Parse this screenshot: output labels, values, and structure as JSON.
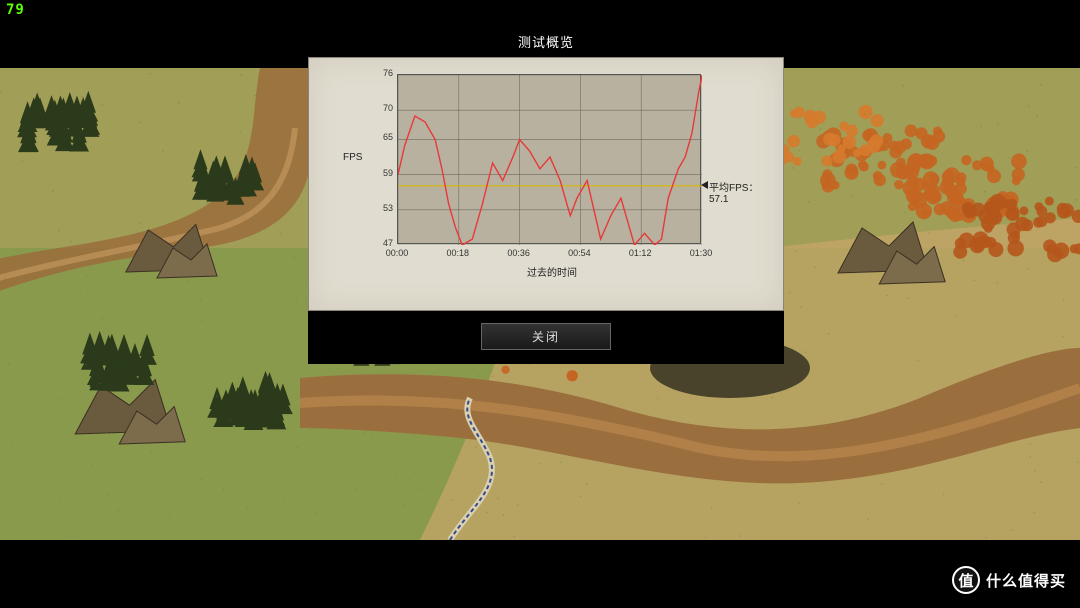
{
  "fps_overlay": "79",
  "dialog": {
    "title": "测试概览",
    "close_label": "关闭"
  },
  "chart": {
    "type": "line",
    "ylabel": "FPS",
    "xlabel": "过去的时间",
    "ylim": [
      47,
      76
    ],
    "yticks": [
      47,
      53,
      59,
      65,
      70,
      76
    ],
    "xticks": [
      "00:00",
      "00:18",
      "00:36",
      "00:54",
      "01:12",
      "01:30"
    ],
    "avg_label": "平均FPS：",
    "avg_value": "57.1",
    "line_color": "#e63939",
    "avg_line_color": "#d6b800",
    "plot_bg": "#b9b1a0",
    "grid_color": "#6e6a5c",
    "border_color": "#555555",
    "panel_bg": "#e0dccf",
    "label_fontsize": 10,
    "tick_fontsize": 9,
    "line_width": 1.4,
    "data": [
      [
        0,
        59
      ],
      [
        2,
        64
      ],
      [
        5,
        69
      ],
      [
        8,
        68
      ],
      [
        11,
        65
      ],
      [
        13,
        60
      ],
      [
        15,
        54
      ],
      [
        17,
        50
      ],
      [
        19,
        47
      ],
      [
        22,
        48
      ],
      [
        25,
        54
      ],
      [
        28,
        61
      ],
      [
        31,
        58
      ],
      [
        34,
        62
      ],
      [
        36,
        65
      ],
      [
        39,
        63
      ],
      [
        42,
        60
      ],
      [
        45,
        62
      ],
      [
        48,
        58
      ],
      [
        51,
        52
      ],
      [
        53,
        55
      ],
      [
        56,
        58
      ],
      [
        58,
        53
      ],
      [
        60,
        48
      ],
      [
        63,
        52
      ],
      [
        66,
        55
      ],
      [
        68,
        51
      ],
      [
        70,
        47
      ],
      [
        73,
        49
      ],
      [
        76,
        47
      ],
      [
        78,
        48
      ],
      [
        80,
        55
      ],
      [
        83,
        60
      ],
      [
        85,
        62
      ],
      [
        87,
        66
      ],
      [
        89,
        73
      ],
      [
        90,
        76
      ]
    ]
  },
  "background": {
    "sky_color": "#c9a76a",
    "grass_color": "#8a9a4d",
    "river_color": "#9a6f3d",
    "tree_dark": "#2a3a1a",
    "tree_orange": "#c46522",
    "sand_color": "#c9a76a"
  },
  "watermark": {
    "badge": "值",
    "text": "什么值得买"
  }
}
